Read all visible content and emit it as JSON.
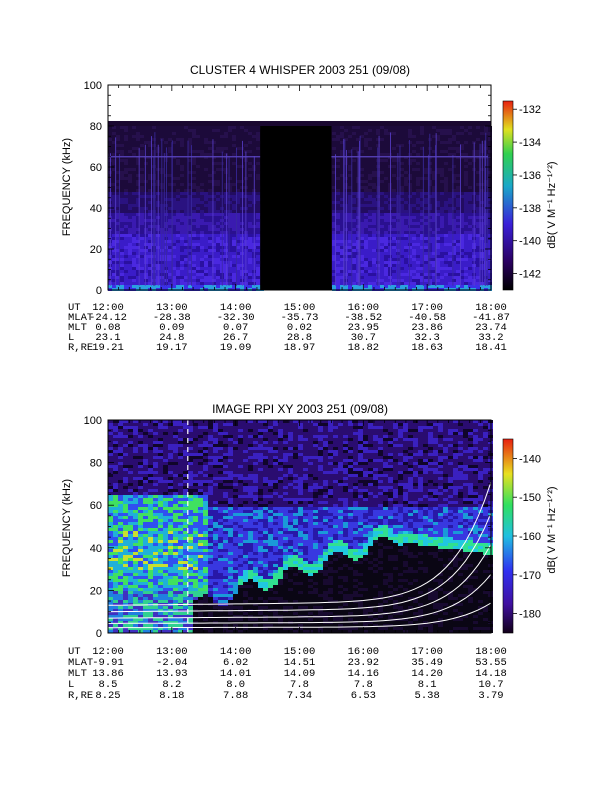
{
  "chart_data": [
    {
      "type": "heatmap",
      "title": "CLUSTER 4 WHISPER 2003 251 (09/08)",
      "ylabel": "FREQUENCY (kHz)",
      "ylim": [
        0,
        100
      ],
      "yticks": [
        "0",
        "20",
        "40",
        "60",
        "80",
        "100"
      ],
      "x_ticks": [
        "12:00",
        "13:00",
        "14:00",
        "15:00",
        "16:00",
        "17:00",
        "18:00"
      ],
      "colorbar": {
        "label": "dB( V M⁻¹ Hz⁻¹ᐟ²)",
        "range": [
          -143,
          -131.5
        ],
        "ticks": [
          "-132",
          "-134",
          "-136",
          "-138",
          "-140",
          "-142"
        ],
        "tick_values": [
          -132,
          -134,
          -136,
          -138,
          -140,
          -142
        ]
      },
      "data_gap": [
        "14:23",
        "15:30"
      ],
      "band_limit_khz": 80,
      "ephemeris": {
        "labels": [
          "UT",
          "MLAT",
          "MLT",
          "L",
          "R,RE"
        ],
        "rows": [
          [
            "12:00",
            "13:00",
            "14:00",
            "15:00",
            "16:00",
            "17:00",
            "18:00"
          ],
          [
            "-24.12",
            "-28.38",
            "-32.30",
            "-35.73",
            "-38.52",
            "-40.58",
            "-41.87"
          ],
          [
            "0.08",
            "0.09",
            "0.07",
            "0.02",
            "23.95",
            "23.86",
            "23.74"
          ],
          [
            "23.1",
            "24.8",
            "26.7",
            "28.8",
            "30.7",
            "32.3",
            "33.2"
          ],
          [
            "19.21",
            "19.17",
            "19.09",
            "18.97",
            "18.82",
            "18.63",
            "18.41"
          ]
        ]
      }
    },
    {
      "type": "heatmap",
      "title": "IMAGE RPI XY 2003 251 (09/08)",
      "ylabel": "FREQUENCY (kHz)",
      "ylim": [
        0,
        100
      ],
      "yticks": [
        "0",
        "20",
        "40",
        "60",
        "80",
        "100"
      ],
      "x_ticks": [
        "12:00",
        "13:00",
        "14:00",
        "15:00",
        "16:00",
        "17:00",
        "18:00"
      ],
      "colorbar": {
        "label": "dB( V M⁻¹ Hz⁻¹ᐟ²)",
        "range": [
          -185,
          -135
        ],
        "ticks": [
          "-140",
          "-150",
          "-160",
          "-170",
          "-180"
        ],
        "tick_values": [
          -140,
          -150,
          -160,
          -170,
          -180
        ]
      },
      "dashed_marker_time": "13:15",
      "ephemeris": {
        "labels": [
          "UT",
          "MLAT",
          "MLT",
          "L",
          "R,RE"
        ],
        "rows": [
          [
            "12:00",
            "13:00",
            "14:00",
            "15:00",
            "16:00",
            "17:00",
            "18:00"
          ],
          [
            "-9.91",
            "-2.04",
            "6.02",
            "14.51",
            "23.92",
            "35.49",
            "53.55"
          ],
          [
            "13.86",
            "13.93",
            "14.01",
            "14.09",
            "14.16",
            "14.20",
            "14.18"
          ],
          [
            "8.5",
            "8.2",
            "8.0",
            "7.8",
            "7.8",
            "8.1",
            "10.7"
          ],
          [
            "8.25",
            "8.18",
            "7.88",
            "7.34",
            "6.53",
            "5.38",
            "3.79"
          ]
        ]
      }
    }
  ]
}
